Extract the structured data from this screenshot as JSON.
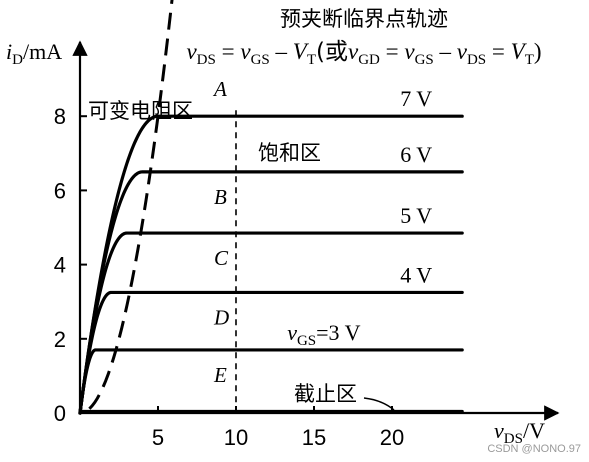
{
  "chart_data": {
    "type": "line",
    "title": "预夹断临界点轨迹",
    "formula": {
      "v1": "v",
      "s1": "DS",
      "eq1": " = ",
      "v2": "v",
      "s2": "GS",
      "minus1": " – ",
      "v3": "V",
      "s3": "T",
      "paren_open": "(或",
      "v4": "v",
      "s4": "GD",
      "eq2": " = ",
      "v5": "v",
      "s5": "GS",
      "minus2": " – ",
      "v6": "v",
      "s6": "DS",
      "eq3": " = ",
      "v7": "V",
      "s7": "T",
      "paren_close": ")"
    },
    "ylabel": {
      "var": "i",
      "sub": "D",
      "unit": "/mA"
    },
    "xlabel": {
      "var": "v",
      "sub": "DS",
      "unit": "/V"
    },
    "x_ticks": [
      "5",
      "10",
      "15",
      "20"
    ],
    "y_ticks": [
      "0",
      "2",
      "4",
      "6",
      "8"
    ],
    "xlim": [
      0,
      25
    ],
    "ylim": [
      0,
      9.5
    ],
    "vt": 2,
    "series": [
      {
        "name": "7 V",
        "vgs": 7,
        "saturation_current": 8.0
      },
      {
        "name": "6 V",
        "vgs": 6,
        "saturation_current": 6.5
      },
      {
        "name": "5 V",
        "vgs": 5,
        "saturation_current": 4.85
      },
      {
        "name": "4 V",
        "vgs": 4,
        "saturation_current": 3.25
      },
      {
        "name_prefix": "v",
        "name_sub": "GS",
        "name": "=3 V",
        "vgs": 3,
        "saturation_current": 1.7
      }
    ],
    "cutoff_current": 0,
    "points": [
      {
        "label": "A",
        "x": 10,
        "y": 8.0
      },
      {
        "label": "B",
        "x": 10,
        "y": 6.5
      },
      {
        "label": "C",
        "x": 10,
        "y": 4.85
      },
      {
        "label": "D",
        "x": 10,
        "y": 3.25
      },
      {
        "label": "E",
        "x": 10,
        "y": 1.7
      }
    ],
    "regions": {
      "ohmic": "可变电阻区",
      "saturation": "饱和区",
      "cutoff": "截止区"
    },
    "grid": false
  },
  "watermark": "CSDN @NONO.97"
}
